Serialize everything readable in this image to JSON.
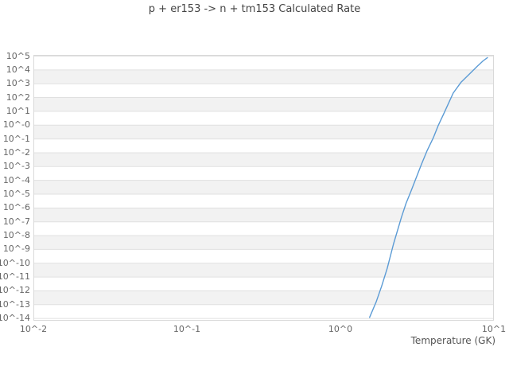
{
  "title": "p + er153 -> n + tm153 Calculated Rate",
  "colors": {
    "curve": "#5b9bd5",
    "band": "#f2f2f2",
    "gridline": "#e0e0e0",
    "plot_border": "#d9d9d9",
    "tick_text": "#666666",
    "title_text": "#444444"
  },
  "chart_data": {
    "type": "line",
    "title": "p + er153 -> n + tm153 Calculated Rate",
    "xlabel": "Temperature (GK)",
    "ylabel": "",
    "x_scale": "log",
    "y_scale": "log",
    "xlim": [
      0.01,
      10
    ],
    "ylim": [
      1e-14,
      100000.0
    ],
    "x_tick_values": [
      0.01,
      0.1,
      1,
      10
    ],
    "x_tick_labels": [
      "10^-2",
      "10^-1",
      "10^0",
      "10^1"
    ],
    "y_tick_exponents": [
      5,
      4,
      3,
      2,
      1,
      0,
      -1,
      -2,
      -3,
      -4,
      -5,
      -6,
      -7,
      -8,
      -9,
      -10,
      -11,
      -12,
      -13,
      -14
    ],
    "y_tick_labels": [
      "10^5",
      "10^4",
      "10^3",
      "10^2",
      "10^1",
      "10^-0",
      "10^-1",
      "10^-2",
      "10^-3",
      "10^-4",
      "10^-5",
      "10^-6",
      "10^-7",
      "10^-8",
      "10^-9",
      "10^-10",
      "10^-11",
      "10^-12",
      "10^-13",
      "10^-14"
    ],
    "grid": "horizontal gridlines with alternating white/gray decade bands",
    "legend": "none",
    "series": [
      {
        "name": "Calculated Rate",
        "color": "#5b9bd5",
        "x": [
          1.55,
          1.71,
          1.86,
          2.02,
          2.22,
          2.5,
          2.68,
          2.89,
          3.37,
          3.68,
          4.03,
          4.35,
          4.71,
          5.43,
          6.12,
          6.9,
          7.78,
          8.5,
          9.08
        ],
        "y": [
          1.2e-14,
          1.6e-13,
          2.3e-12,
          4.3e-11,
          2.5e-09,
          2.2e-07,
          2.2e-06,
          1.8e-05,
          0.0014,
          0.015,
          0.12,
          1.0,
          6.5,
          210,
          1300,
          4800,
          18000,
          45000,
          78000
        ]
      }
    ]
  }
}
